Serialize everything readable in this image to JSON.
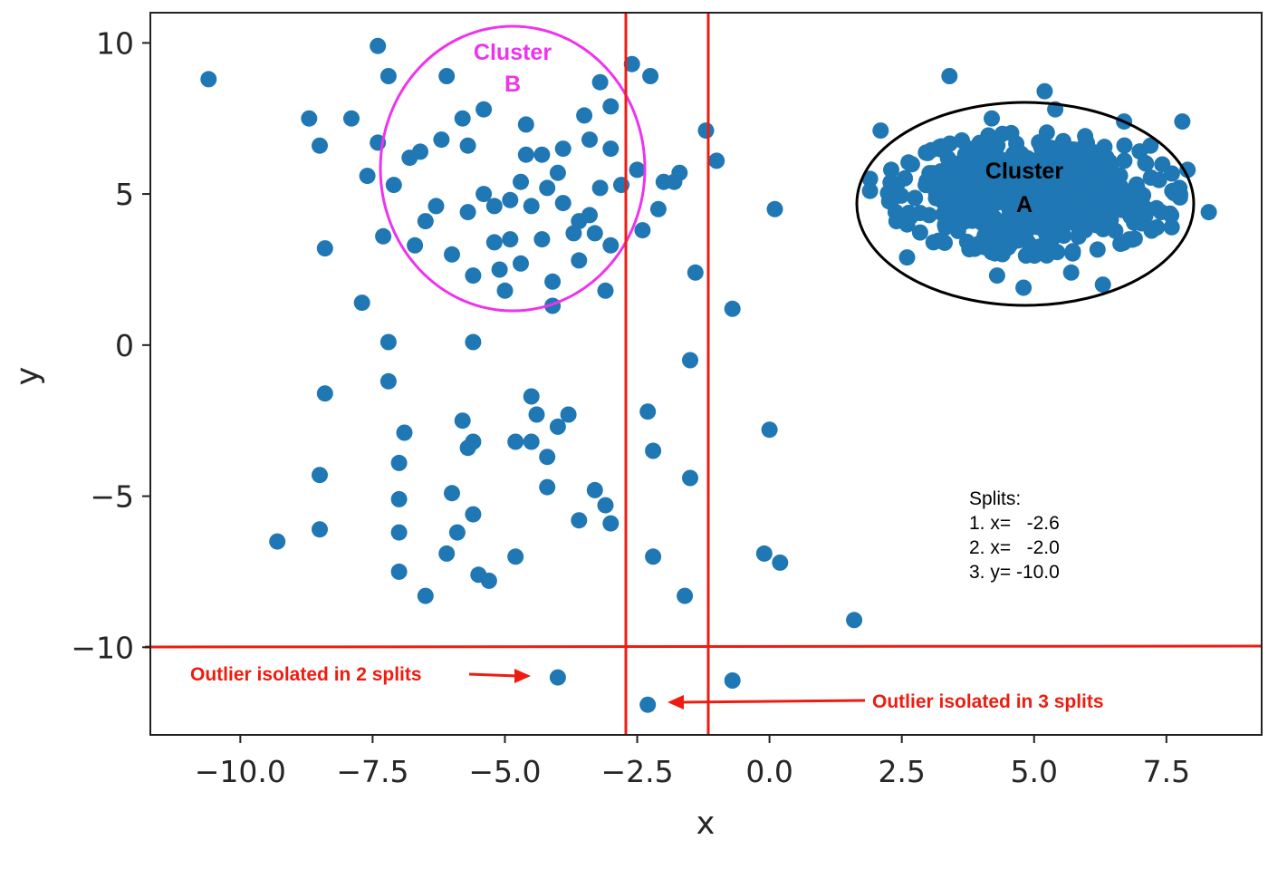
{
  "chart_data": {
    "type": "scatter",
    "xlabel": "x",
    "ylabel": "y",
    "xlim": [
      -11.7,
      9.3
    ],
    "ylim": [
      -12.9,
      11.0
    ],
    "xticks": [
      -10.0,
      -7.5,
      -5.0,
      -2.5,
      0.0,
      2.5,
      5.0,
      7.5
    ],
    "xtick_labels": [
      "−10.0",
      "−7.5",
      "−5.0",
      "−2.5",
      "0.0",
      "2.5",
      "5.0",
      "7.5"
    ],
    "yticks": [
      10,
      5,
      0,
      -5,
      -10
    ],
    "ytick_labels": [
      "10",
      "5",
      "0",
      "−5",
      "−10"
    ],
    "point_color": "#1f77b4",
    "split_color": "#ee1c10",
    "points": [
      [
        -10.6,
        8.8
      ],
      [
        -9.3,
        -6.5
      ],
      [
        -8.7,
        7.5
      ],
      [
        -8.5,
        6.6
      ],
      [
        -8.4,
        3.2
      ],
      [
        -8.4,
        -1.6
      ],
      [
        -8.5,
        -4.3
      ],
      [
        -8.5,
        -6.1
      ],
      [
        -7.9,
        7.5
      ],
      [
        -7.7,
        1.4
      ],
      [
        -7.6,
        5.6
      ],
      [
        -7.4,
        9.9
      ],
      [
        -7.4,
        6.7
      ],
      [
        -7.3,
        3.6
      ],
      [
        -7.2,
        8.9
      ],
      [
        -7.2,
        0.1
      ],
      [
        -7.2,
        -1.2
      ],
      [
        -7.1,
        5.3
      ],
      [
        -7.0,
        -3.9
      ],
      [
        -7.0,
        -5.1
      ],
      [
        -7.0,
        -6.2
      ],
      [
        -7.0,
        -7.5
      ],
      [
        -6.9,
        -2.9
      ],
      [
        -6.8,
        6.2
      ],
      [
        -6.7,
        3.3
      ],
      [
        -6.6,
        6.4
      ],
      [
        -6.5,
        4.1
      ],
      [
        -6.5,
        -8.3
      ],
      [
        -6.3,
        4.6
      ],
      [
        -6.2,
        6.8
      ],
      [
        -6.1,
        8.9
      ],
      [
        -6.1,
        -6.9
      ],
      [
        -6.0,
        3.0
      ],
      [
        -6.0,
        -4.9
      ],
      [
        -5.9,
        -6.2
      ],
      [
        -5.8,
        7.5
      ],
      [
        -5.8,
        -2.5
      ],
      [
        -5.7,
        6.6
      ],
      [
        -5.7,
        4.4
      ],
      [
        -5.7,
        -3.4
      ],
      [
        -5.6,
        2.3
      ],
      [
        -5.6,
        0.1
      ],
      [
        -5.6,
        -3.2
      ],
      [
        -5.6,
        -5.6
      ],
      [
        -5.5,
        -7.6
      ],
      [
        -5.4,
        7.8
      ],
      [
        -5.4,
        5.0
      ],
      [
        -5.3,
        -7.8
      ],
      [
        -5.2,
        3.4
      ],
      [
        -5.2,
        4.6
      ],
      [
        -5.1,
        2.5
      ],
      [
        -5.0,
        1.8
      ],
      [
        -4.9,
        3.5
      ],
      [
        -4.9,
        4.8
      ],
      [
        -4.8,
        -3.2
      ],
      [
        -4.8,
        -7.0
      ],
      [
        -4.7,
        5.4
      ],
      [
        -4.7,
        2.7
      ],
      [
        -4.6,
        7.3
      ],
      [
        -4.6,
        6.3
      ],
      [
        -4.5,
        4.6
      ],
      [
        -4.5,
        -1.7
      ],
      [
        -4.5,
        -3.2
      ],
      [
        -4.4,
        -2.3
      ],
      [
        -4.3,
        6.3
      ],
      [
        -4.3,
        3.5
      ],
      [
        -4.2,
        5.2
      ],
      [
        -4.2,
        -3.7
      ],
      [
        -4.2,
        -4.7
      ],
      [
        -4.1,
        1.3
      ],
      [
        -4.1,
        2.1
      ],
      [
        -4.0,
        -2.7
      ],
      [
        -4.0,
        5.7
      ],
      [
        -3.9,
        6.5
      ],
      [
        -3.9,
        4.7
      ],
      [
        -3.8,
        -2.3
      ],
      [
        -3.7,
        3.7
      ],
      [
        -3.6,
        2.8
      ],
      [
        -3.6,
        4.1
      ],
      [
        -3.6,
        -5.8
      ],
      [
        -3.5,
        7.6
      ],
      [
        -3.4,
        4.3
      ],
      [
        -3.4,
        6.8
      ],
      [
        -3.3,
        3.7
      ],
      [
        -3.3,
        -4.8
      ],
      [
        -3.2,
        8.7
      ],
      [
        -3.2,
        5.2
      ],
      [
        -3.1,
        1.8
      ],
      [
        -3.1,
        -5.3
      ],
      [
        -3.0,
        7.9
      ],
      [
        -3.0,
        6.5
      ],
      [
        -3.0,
        3.3
      ],
      [
        -3.0,
        -5.9
      ],
      [
        -2.8,
        5.3
      ],
      [
        -2.6,
        9.3
      ],
      [
        -2.5,
        5.8
      ],
      [
        -2.4,
        3.8
      ],
      [
        -2.3,
        -2.2
      ],
      [
        -2.3,
        -11.9
      ],
      [
        -2.25,
        8.9
      ],
      [
        -2.2,
        -3.5
      ],
      [
        -2.2,
        -7.0
      ],
      [
        -2.1,
        4.5
      ],
      [
        -2.0,
        5.4
      ],
      [
        -1.8,
        5.4
      ],
      [
        -1.7,
        5.7
      ],
      [
        -1.6,
        -8.3
      ],
      [
        -1.5,
        -0.5
      ],
      [
        -1.5,
        -4.4
      ],
      [
        -1.4,
        2.4
      ],
      [
        -1.2,
        7.1
      ],
      [
        -1.0,
        6.1
      ],
      [
        -0.7,
        1.2
      ],
      [
        -0.7,
        -11.1
      ],
      [
        -0.1,
        -6.9
      ],
      [
        0.0,
        -2.8
      ],
      [
        0.1,
        4.5
      ],
      [
        0.2,
        -7.2
      ],
      [
        1.6,
        -9.1
      ],
      [
        -4.0,
        -11.0
      ],
      [
        3.4,
        8.9
      ],
      [
        4.8,
        1.9
      ],
      [
        5.2,
        8.4
      ],
      [
        8.3,
        4.4
      ],
      [
        7.9,
        5.8
      ],
      [
        7.8,
        7.4
      ],
      [
        7.6,
        3.9
      ],
      [
        2.1,
        7.1
      ],
      [
        1.9,
        5.1
      ],
      [
        1.9,
        5.5
      ],
      [
        2.6,
        2.9
      ],
      [
        6.3,
        2.0
      ],
      [
        7.2,
        6.6
      ],
      [
        7.4,
        4.4
      ],
      [
        5.4,
        7.8
      ],
      [
        6.7,
        7.4
      ],
      [
        4.2,
        7.5
      ],
      [
        2.4,
        4.1
      ],
      [
        3.1,
        3.4
      ],
      [
        4.3,
        2.3
      ],
      [
        5.7,
        2.4
      ],
      [
        6.8,
        3.5
      ],
      [
        7.7,
        5.0
      ],
      [
        2.3,
        5.8
      ]
    ],
    "dense_cluster": {
      "name": "Cluster A",
      "center": [
        5.0,
        5.0
      ],
      "spread": [
        1.15,
        0.85
      ],
      "count": 650,
      "seed": 7
    },
    "splits_lines": [
      {
        "axis": "x",
        "value": -2.6
      },
      {
        "axis": "x",
        "value": -2.0
      },
      {
        "axis": "y",
        "value": -10.0
      }
    ],
    "annotations": {
      "cluster_a": {
        "line1": "Cluster",
        "line2": "A",
        "color": "#000000"
      },
      "cluster_b": {
        "line1": "Cluster",
        "line2": "B",
        "color": "#ee33ee"
      },
      "splits_title": "Splits:",
      "splits_items": [
        "1. x=   -2.6",
        "2. x=   -2.0",
        "3. y= -10.0"
      ],
      "outlier_2": "Outlier isolated in 2 splits",
      "outlier_3": "Outlier isolated in 3 splits"
    }
  }
}
